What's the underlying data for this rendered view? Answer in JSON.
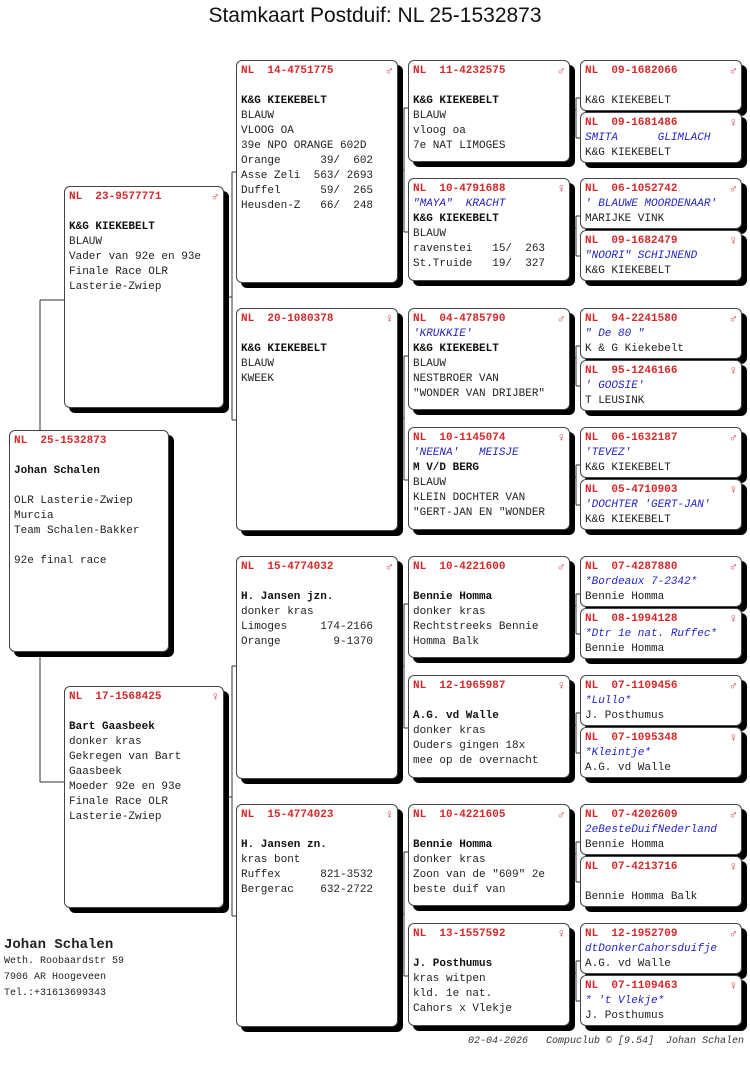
{
  "title": "Stamkaart Postduif: NL  25-1532873",
  "colors": {
    "ring": "#d42a2a",
    "name": "#2424c8",
    "text": "#222222"
  },
  "birds": [
    {
      "ring": "NL  25-1532873",
      "sex": "",
      "lines": [
        {
          "t": "",
          "s": ""
        },
        {
          "t": "Johan Schalen",
          "s": "bold"
        },
        {
          "t": "",
          "s": ""
        },
        {
          "t": "OLR Lasterie-Zwiep",
          "s": ""
        },
        {
          "t": "Murcia",
          "s": ""
        },
        {
          "t": "Team Schalen-Bakker",
          "s": ""
        },
        {
          "t": "",
          "s": ""
        },
        {
          "t": "92e final race",
          "s": ""
        }
      ]
    },
    {
      "ring": "NL  23-9577771",
      "sex": "♂",
      "lines": [
        {
          "t": "",
          "s": ""
        },
        {
          "t": "K&G KIEKEBELT",
          "s": "bold"
        },
        {
          "t": "BLAUW",
          "s": ""
        },
        {
          "t": "Vader van 92e en 93e",
          "s": ""
        },
        {
          "t": "Finale Race OLR",
          "s": ""
        },
        {
          "t": "Lasterie-Zwiep",
          "s": ""
        }
      ]
    },
    {
      "ring": "NL  17-1568425",
      "sex": "♀",
      "lines": [
        {
          "t": "",
          "s": ""
        },
        {
          "t": "Bart Gaasbeek",
          "s": "bold"
        },
        {
          "t": "donker kras",
          "s": ""
        },
        {
          "t": "Gekregen van Bart",
          "s": ""
        },
        {
          "t": "Gaasbeek",
          "s": ""
        },
        {
          "t": "Moeder 92e en 93e",
          "s": ""
        },
        {
          "t": "Finale Race OLR",
          "s": ""
        },
        {
          "t": "Lasterie-Zwiep",
          "s": ""
        }
      ]
    },
    {
      "ring": "NL  14-4751775",
      "sex": "♂",
      "lines": [
        {
          "t": "",
          "s": ""
        },
        {
          "t": "K&G KIEKEBELT",
          "s": "bold"
        },
        {
          "t": "BLAUW",
          "s": ""
        },
        {
          "t": "VLOOG OA",
          "s": ""
        },
        {
          "t": "39e NPO ORANGE 602D",
          "s": ""
        },
        {
          "t": "Orange      39/  602",
          "s": ""
        },
        {
          "t": "Asse Zeli  563/ 2693",
          "s": ""
        },
        {
          "t": "Duffel      59/  265",
          "s": ""
        },
        {
          "t": "Heusden-Z   66/  248",
          "s": ""
        }
      ]
    },
    {
      "ring": "NL  20-1080378",
      "sex": "♀",
      "lines": [
        {
          "t": "",
          "s": ""
        },
        {
          "t": "K&G KIEKEBELT",
          "s": "bold"
        },
        {
          "t": "BLAUW",
          "s": ""
        },
        {
          "t": "KWEEK",
          "s": ""
        }
      ]
    },
    {
      "ring": "NL  15-4774032",
      "sex": "♂",
      "lines": [
        {
          "t": "",
          "s": ""
        },
        {
          "t": "H. Jansen jzn.",
          "s": "bold"
        },
        {
          "t": "donker kras",
          "s": ""
        },
        {
          "t": "Limoges     174-2166",
          "s": ""
        },
        {
          "t": "Orange        9-1370",
          "s": ""
        }
      ]
    },
    {
      "ring": "NL  15-4774023",
      "sex": "♀",
      "lines": [
        {
          "t": "",
          "s": ""
        },
        {
          "t": "H. Jansen zn.",
          "s": "bold"
        },
        {
          "t": "kras bont",
          "s": ""
        },
        {
          "t": "Ruffex      821-3532",
          "s": ""
        },
        {
          "t": "Bergerac    632-2722",
          "s": ""
        }
      ]
    },
    {
      "ring": "NL  11-4232575",
      "sex": "♂",
      "lines": [
        {
          "t": "",
          "s": ""
        },
        {
          "t": "K&G KIEKEBELT",
          "s": "bold"
        },
        {
          "t": "BLAUW",
          "s": ""
        },
        {
          "t": "vloog oa",
          "s": ""
        },
        {
          "t": "7e NAT LIMOGES",
          "s": ""
        }
      ]
    },
    {
      "ring": "NL  10-4791688",
      "sex": "♀",
      "lines": [
        {
          "t": "\"MAYA\"  KRACHT",
          "s": "name"
        },
        {
          "t": "K&G KIEKEBELT",
          "s": "bold"
        },
        {
          "t": "BLAUW",
          "s": ""
        },
        {
          "t": "ravenstei   15/  263",
          "s": ""
        },
        {
          "t": "St.Truide   19/  327",
          "s": ""
        }
      ]
    },
    {
      "ring": "NL  04-4785790",
      "sex": "♂",
      "lines": [
        {
          "t": "'KRUKKIE'",
          "s": "name"
        },
        {
          "t": "K&G KIEKEBELT",
          "s": "bold"
        },
        {
          "t": "BLAUW",
          "s": ""
        },
        {
          "t": "NESTBROER VAN",
          "s": ""
        },
        {
          "t": "\"WONDER VAN DRIJBER\"",
          "s": ""
        }
      ]
    },
    {
      "ring": "NL  10-1145074",
      "sex": "♀",
      "lines": [
        {
          "t": "'NEENA'   MEISJE",
          "s": "name"
        },
        {
          "t": "M V/D BERG",
          "s": "bold"
        },
        {
          "t": "BLAUW",
          "s": ""
        },
        {
          "t": "KLEIN DOCHTER VAN",
          "s": ""
        },
        {
          "t": "\"GERT-JAN EN \"WONDER",
          "s": ""
        }
      ]
    },
    {
      "ring": "NL  10-4221600",
      "sex": "♂",
      "lines": [
        {
          "t": "",
          "s": ""
        },
        {
          "t": "Bennie Homma",
          "s": "bold"
        },
        {
          "t": "donker kras",
          "s": ""
        },
        {
          "t": "Rechtstreeks Bennie",
          "s": ""
        },
        {
          "t": "Homma Balk",
          "s": ""
        }
      ]
    },
    {
      "ring": "NL  12-1965987",
      "sex": "♀",
      "lines": [
        {
          "t": "",
          "s": ""
        },
        {
          "t": "A.G. vd Walle",
          "s": "bold"
        },
        {
          "t": "donker kras",
          "s": ""
        },
        {
          "t": "Ouders gingen 18x",
          "s": ""
        },
        {
          "t": "mee op de overnacht",
          "s": ""
        }
      ]
    },
    {
      "ring": "NL  10-4221605",
      "sex": "♂",
      "lines": [
        {
          "t": "",
          "s": ""
        },
        {
          "t": "Bennie Homma",
          "s": "bold"
        },
        {
          "t": "donker kras",
          "s": ""
        },
        {
          "t": "Zoon van de \"609\" 2e",
          "s": ""
        },
        {
          "t": "beste duif van",
          "s": ""
        }
      ]
    },
    {
      "ring": "NL  13-1557592",
      "sex": "♀",
      "lines": [
        {
          "t": "",
          "s": ""
        },
        {
          "t": "J. Posthumus",
          "s": "bold"
        },
        {
          "t": "kras witpen",
          "s": ""
        },
        {
          "t": "kld. 1e nat.",
          "s": ""
        },
        {
          "t": "Cahors x Vlekje",
          "s": ""
        }
      ]
    },
    {
      "ring": "NL  09-1682066",
      "sex": "♂",
      "lines": [
        {
          "t": "",
          "s": ""
        },
        {
          "t": "K&G KIEKEBELT",
          "s": ""
        }
      ]
    },
    {
      "ring": "NL  09-1681486",
      "sex": "♀",
      "lines": [
        {
          "t": "SMITA      GLIMLACH",
          "s": "name"
        },
        {
          "t": "K&G KIEKEBELT",
          "s": ""
        }
      ]
    },
    {
      "ring": "NL  06-1052742",
      "sex": "♂",
      "lines": [
        {
          "t": "' BLAUWE MOORDENAAR'",
          "s": "name"
        },
        {
          "t": "MARIJKE VINK",
          "s": ""
        }
      ]
    },
    {
      "ring": "NL  09-1682479",
      "sex": "♀",
      "lines": [
        {
          "t": "\"NOORI\" SCHIJNEND",
          "s": "name"
        },
        {
          "t": "K&G KIEKEBELT",
          "s": ""
        }
      ]
    },
    {
      "ring": "NL  94-2241580",
      "sex": "♂",
      "lines": [
        {
          "t": "\" De 80 \"",
          "s": "name"
        },
        {
          "t": "K & G Kiekebelt",
          "s": ""
        }
      ]
    },
    {
      "ring": "NL  95-1246166",
      "sex": "♀",
      "lines": [
        {
          "t": "' GOOSIE'",
          "s": "name"
        },
        {
          "t": "T LEUSINK",
          "s": ""
        }
      ]
    },
    {
      "ring": "NL  06-1632187",
      "sex": "♂",
      "lines": [
        {
          "t": "'TEVEZ'",
          "s": "name"
        },
        {
          "t": "K&G KIEKEBELT",
          "s": ""
        }
      ]
    },
    {
      "ring": "NL  05-4710903",
      "sex": "♀",
      "lines": [
        {
          "t": "'DOCHTER 'GERT-JAN'",
          "s": "name"
        },
        {
          "t": "K&G KIEKEBELT",
          "s": ""
        }
      ]
    },
    {
      "ring": "NL  07-4287880",
      "sex": "♂",
      "lines": [
        {
          "t": "*Bordeaux 7-2342*",
          "s": "name"
        },
        {
          "t": "Bennie Homma",
          "s": ""
        }
      ]
    },
    {
      "ring": "NL  08-1994128",
      "sex": "♀",
      "lines": [
        {
          "t": "*Dtr 1e nat. Ruffec*",
          "s": "name"
        },
        {
          "t": "Bennie Homma",
          "s": ""
        }
      ]
    },
    {
      "ring": "NL  07-1109456",
      "sex": "♂",
      "lines": [
        {
          "t": "*Lullo*",
          "s": "name"
        },
        {
          "t": "J. Posthumus",
          "s": ""
        }
      ]
    },
    {
      "ring": "NL  07-1095348",
      "sex": "♀",
      "lines": [
        {
          "t": "*Kleintje*",
          "s": "name"
        },
        {
          "t": "A.G. vd Walle",
          "s": ""
        }
      ]
    },
    {
      "ring": "NL  07-4202609",
      "sex": "♂",
      "lines": [
        {
          "t": "2eBesteDuifNederland",
          "s": "name"
        },
        {
          "t": "Bennie Homma",
          "s": ""
        }
      ]
    },
    {
      "ring": "NL  07-4213716",
      "sex": "♀",
      "lines": [
        {
          "t": "",
          "s": ""
        },
        {
          "t": "Bennie Homma Balk",
          "s": ""
        }
      ]
    },
    {
      "ring": "NL  12-1952709",
      "sex": "♂",
      "lines": [
        {
          "t": "dtDonkerCahorsduifje",
          "s": "name"
        },
        {
          "t": "A.G. vd Walle",
          "s": ""
        }
      ]
    },
    {
      "ring": "NL  07-1109463",
      "sex": "♀",
      "lines": [
        {
          "t": "* 't Vlekje*",
          "s": "name"
        },
        {
          "t": "J. Posthumus",
          "s": ""
        }
      ]
    }
  ],
  "owner": {
    "name": "Johan Schalen",
    "address": "Weth. Roobaardstr 59",
    "city": "7906 AR  Hoogeveen",
    "phone": "Tel.:+31613699343"
  },
  "footer": "02-04-2026   Compuclub © [9.54]  Johan Schalen"
}
